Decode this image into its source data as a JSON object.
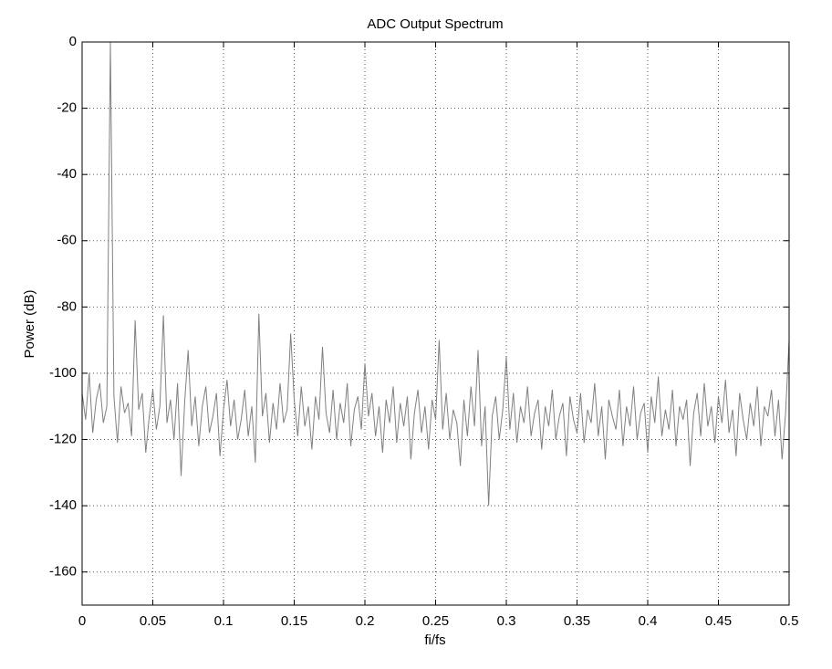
{
  "chart_data": {
    "type": "line",
    "title": "ADC Output Spectrum",
    "x_label": "fi/fs",
    "y_label": "Power (dB)",
    "xlim": [
      0,
      0.5
    ],
    "xticks": [
      0,
      0.05,
      0.1,
      0.15,
      0.2,
      0.25,
      0.3,
      0.35,
      0.4,
      0.45,
      0.5
    ],
    "ylim": [
      -170,
      0
    ],
    "yticks": [
      -160,
      -140,
      -120,
      -100,
      -80,
      -60,
      -40,
      -20,
      0
    ],
    "grid": true,
    "x": [
      0,
      0.0025,
      0.005,
      0.0075,
      0.01,
      0.0125,
      0.015,
      0.0175,
      0.02,
      0.0225,
      0.025,
      0.0275,
      0.03,
      0.0325,
      0.035,
      0.0375,
      0.04,
      0.0425,
      0.045,
      0.0475,
      0.05,
      0.0525,
      0.055,
      0.0575,
      0.06,
      0.0625,
      0.065,
      0.0675,
      0.07,
      0.0725,
      0.075,
      0.0775,
      0.08,
      0.0825,
      0.085,
      0.0875,
      0.09,
      0.0925,
      0.095,
      0.0975,
      0.1,
      0.1025,
      0.105,
      0.1075,
      0.11,
      0.1125,
      0.115,
      0.1175,
      0.12,
      0.1225,
      0.125,
      0.1275,
      0.13,
      0.1325,
      0.135,
      0.1375,
      0.14,
      0.1425,
      0.145,
      0.1475,
      0.15,
      0.1525,
      0.155,
      0.1575,
      0.16,
      0.1625,
      0.165,
      0.1675,
      0.17,
      0.1725,
      0.175,
      0.1775,
      0.18,
      0.1825,
      0.185,
      0.1875,
      0.19,
      0.1925,
      0.195,
      0.1975,
      0.2,
      0.2025,
      0.205,
      0.2075,
      0.21,
      0.2125,
      0.215,
      0.2175,
      0.22,
      0.2225,
      0.225,
      0.2275,
      0.23,
      0.2325,
      0.235,
      0.2375,
      0.24,
      0.2425,
      0.245,
      0.2475,
      0.25,
      0.2525,
      0.255,
      0.2575,
      0.26,
      0.2625,
      0.265,
      0.2675,
      0.27,
      0.2725,
      0.275,
      0.2775,
      0.28,
      0.2825,
      0.285,
      0.2875,
      0.29,
      0.2925,
      0.295,
      0.2975,
      0.3,
      0.3025,
      0.305,
      0.3075,
      0.31,
      0.3125,
      0.315,
      0.3175,
      0.32,
      0.3225,
      0.325,
      0.3275,
      0.33,
      0.3325,
      0.335,
      0.3375,
      0.34,
      0.3425,
      0.345,
      0.3475,
      0.35,
      0.3525,
      0.355,
      0.3575,
      0.36,
      0.3625,
      0.365,
      0.3675,
      0.37,
      0.3725,
      0.375,
      0.3775,
      0.38,
      0.3825,
      0.385,
      0.3875,
      0.39,
      0.3925,
      0.395,
      0.3975,
      0.4,
      0.4025,
      0.405,
      0.4075,
      0.41,
      0.4125,
      0.415,
      0.4175,
      0.42,
      0.4225,
      0.425,
      0.4275,
      0.43,
      0.4325,
      0.435,
      0.4375,
      0.44,
      0.4425,
      0.445,
      0.4475,
      0.45,
      0.4525,
      0.455,
      0.4575,
      0.46,
      0.4625,
      0.465,
      0.4675,
      0.47,
      0.4725,
      0.475,
      0.4775,
      0.48,
      0.4825,
      0.485,
      0.4875,
      0.49,
      0.4925,
      0.495,
      0.4975,
      0.5
    ],
    "series": [
      {
        "name": "Power",
        "color": "#808080",
        "values": [
          -106,
          -114,
          -100,
          -118,
          -108,
          -103,
          -115,
          -110,
          0,
          -107,
          -121,
          -104,
          -112,
          -109,
          -119,
          -84,
          -111,
          -106,
          -124,
          -113,
          -105,
          -117,
          -110,
          -82.5,
          -115,
          -108,
          -120,
          -103,
          -131,
          -109,
          -93,
          -116,
          -107,
          -122,
          -110,
          -104,
          -118,
          -113,
          -106,
          -125,
          -111,
          -102,
          -116,
          -108,
          -120,
          -114,
          -105,
          -119,
          -110,
          -127,
          -82,
          -113,
          -106,
          -121,
          -109,
          -117,
          -103,
          -115,
          -111,
          -88,
          -108,
          -119,
          -104,
          -116,
          -110,
          -123,
          -107,
          -114,
          -92,
          -112,
          -118,
          -105,
          -120,
          -109,
          -115,
          -103,
          -122,
          -111,
          -107,
          -117,
          -97,
          -113,
          -106,
          -119,
          -110,
          -124,
          -108,
          -115,
          -104,
          -121,
          -109,
          -116,
          -107,
          -126,
          -112,
          -105,
          -118,
          -110,
          -123,
          -108,
          -114,
          -90,
          -117,
          -106,
          -120,
          -111,
          -115,
          -128,
          -108,
          -119,
          -104,
          -116,
          -93,
          -122,
          -110,
          -140,
          -113,
          -107,
          -120,
          -111,
          -95,
          -117,
          -106,
          -121,
          -110,
          -115,
          -104,
          -119,
          -112,
          -108,
          -123,
          -110,
          -116,
          -105,
          -120,
          -113,
          -109,
          -125,
          -107,
          -114,
          -118,
          -106,
          -121,
          -111,
          -115,
          -103,
          -119,
          -110,
          -126,
          -108,
          -113,
          -117,
          -105,
          -122,
          -110,
          -116,
          -104,
          -120,
          -112,
          -109,
          -124,
          -107,
          -115,
          -101,
          -119,
          -111,
          -117,
          -105,
          -122,
          -110,
          -114,
          -108,
          -128,
          -112,
          -106,
          -119,
          -103,
          -116,
          -110,
          -121,
          -107,
          -115,
          -102,
          -118,
          -111,
          -125,
          -106,
          -114,
          -120,
          -109,
          -116,
          -104,
          -122,
          -110,
          -113,
          -105,
          -119,
          -108,
          -126,
          -112,
          -90
        ]
      }
    ]
  }
}
